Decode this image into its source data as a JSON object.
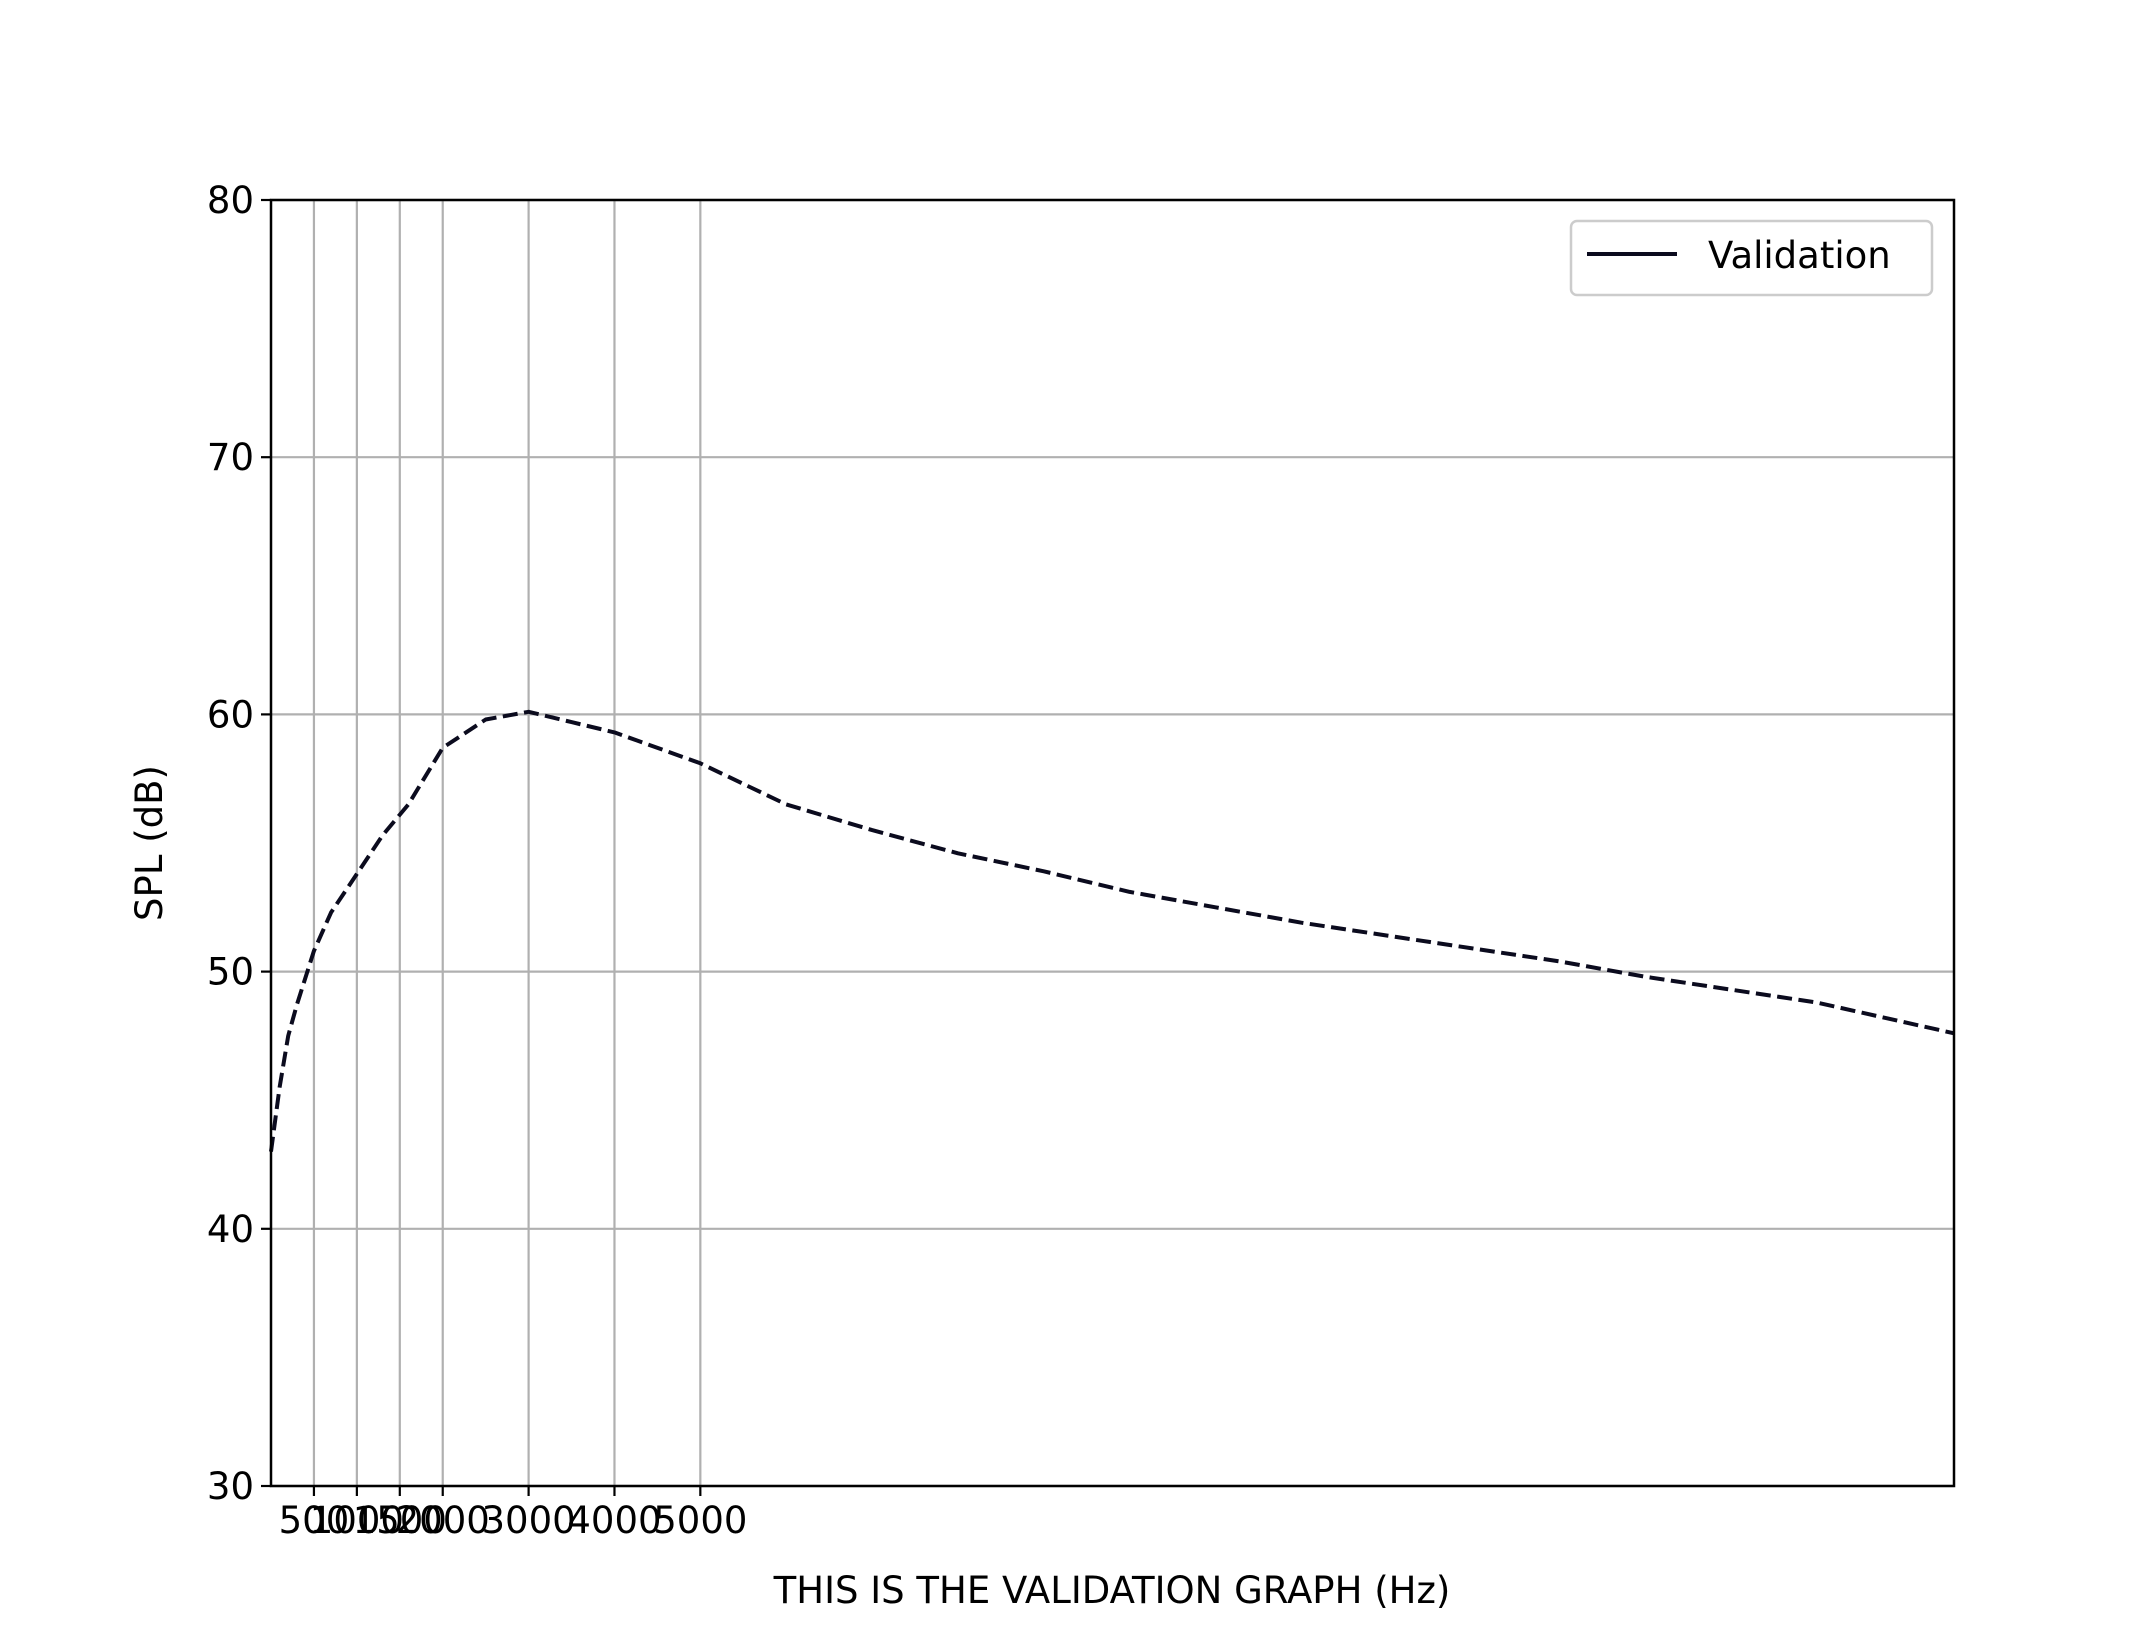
{
  "chart_data": {
    "type": "line",
    "title": "",
    "xlabel": "THIS IS THE VALIDATION GRAPH (Hz)",
    "ylabel": "SPL (dB)",
    "xlim": [
      0,
      19600
    ],
    "ylim": [
      30,
      80
    ],
    "grid": true,
    "legend_position": "top-right",
    "x_ticks": [
      500,
      1000,
      1500,
      2000,
      3000,
      4000,
      5000
    ],
    "x_tick_labels": [
      "500",
      "1000",
      "1500",
      "2000",
      "3000",
      "4000",
      "5000"
    ],
    "y_ticks": [
      30,
      40,
      50,
      60,
      70,
      80
    ],
    "y_tick_labels": [
      "30",
      "40",
      "50",
      "60",
      "70",
      "80"
    ],
    "series": [
      {
        "name": "Validation",
        "color": "#0b0b1e",
        "line_style": "dashed",
        "x": [
          0,
          100,
          200,
          300,
          500,
          700,
          1000,
          1300,
          1600,
          2000,
          2500,
          3000,
          3500,
          4000,
          5000,
          6000,
          7000,
          8000,
          9000,
          10000,
          11000,
          12000,
          13000,
          14000,
          15000,
          16000,
          17000,
          18000,
          19600
        ],
        "y": [
          43.0,
          45.5,
          47.5,
          48.7,
          50.8,
          52.3,
          53.8,
          55.3,
          56.5,
          58.7,
          59.8,
          60.1,
          59.7,
          59.3,
          58.1,
          56.5,
          55.5,
          54.6,
          53.9,
          53.1,
          52.5,
          51.9,
          51.4,
          50.9,
          50.4,
          49.8,
          49.3,
          48.8,
          47.6
        ]
      }
    ]
  }
}
